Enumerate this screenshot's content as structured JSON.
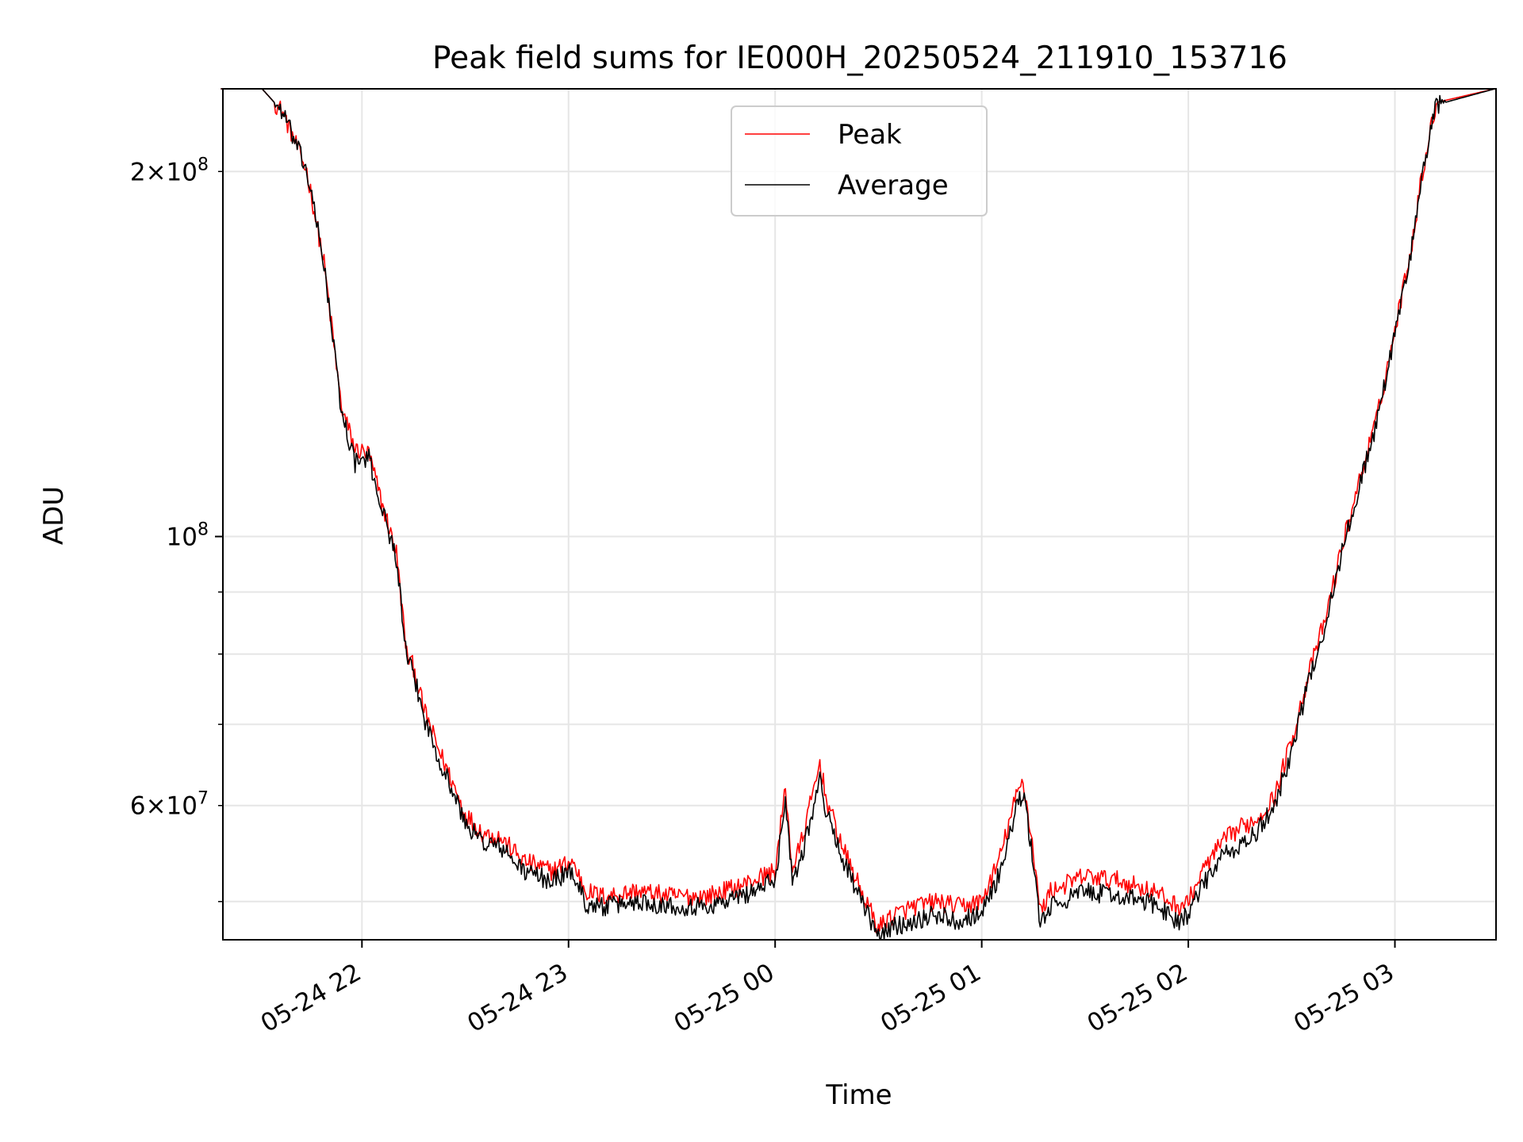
{
  "chart_data": {
    "type": "line",
    "title": "Peak field sums for IE000H_20250524_211910_153716",
    "xlabel": "Time",
    "ylabel": "ADU",
    "yscale": "log",
    "ylim": [
      46500000,
      234000000
    ],
    "xlim": [
      "2025-05-24 21:19:37",
      "2025-05-25 03:29:22"
    ],
    "x_ticks": [
      {
        "time": "2025-05-24 22:00",
        "label": "05-24 22"
      },
      {
        "time": "2025-05-24 23:00",
        "label": "05-24 23"
      },
      {
        "time": "2025-05-25 00:00",
        "label": "05-25 00"
      },
      {
        "time": "2025-05-25 01:00",
        "label": "05-25 01"
      },
      {
        "time": "2025-05-25 02:00",
        "label": "05-25 02"
      },
      {
        "time": "2025-05-25 03:00",
        "label": "05-25 03"
      }
    ],
    "y_ticks_major": [
      {
        "value": 100000000,
        "base": "10",
        "exp": "8"
      }
    ],
    "y_ticks_minor_labeled": [
      {
        "value": 60000000,
        "mantissa": "6",
        "exp": "7"
      },
      {
        "value": 200000000,
        "mantissa": "2",
        "exp": "8"
      }
    ],
    "y_ticks_minor": [
      50000000,
      60000000,
      70000000,
      80000000,
      90000000,
      200000000
    ],
    "grid": true,
    "legend": {
      "position": "top-center"
    },
    "series": [
      {
        "name": "Peak",
        "color": "#ff0000",
        "x": [
          "2025-05-24 21:19",
          "2025-05-24 21:31",
          "2025-05-24 21:37",
          "2025-05-24 21:44",
          "2025-05-24 21:49",
          "2025-05-24 21:54",
          "2025-05-24 21:58",
          "2025-05-24 22:02",
          "2025-05-24 22:06",
          "2025-05-24 22:10",
          "2025-05-24 22:13",
          "2025-05-24 22:15",
          "2025-05-24 22:18",
          "2025-05-24 22:22",
          "2025-05-24 22:26",
          "2025-05-24 22:30",
          "2025-05-24 22:35",
          "2025-05-24 22:40",
          "2025-05-24 22:47",
          "2025-05-24 22:55",
          "2025-05-24 23:01",
          "2025-05-24 23:05",
          "2025-05-24 23:10",
          "2025-05-24 23:20",
          "2025-05-24 23:30",
          "2025-05-24 23:40",
          "2025-05-24 23:50",
          "2025-05-25 00:00",
          "2025-05-25 00:03",
          "2025-05-25 00:05",
          "2025-05-25 00:08",
          "2025-05-25 00:13",
          "2025-05-25 00:15",
          "2025-05-25 00:20",
          "2025-05-25 00:25",
          "2025-05-25 00:30",
          "2025-05-25 00:33",
          "2025-05-25 00:40",
          "2025-05-25 00:47",
          "2025-05-25 00:53",
          "2025-05-25 01:00",
          "2025-05-25 01:05",
          "2025-05-25 01:10",
          "2025-05-25 01:12",
          "2025-05-25 01:15",
          "2025-05-25 01:17",
          "2025-05-25 01:20",
          "2025-05-25 01:30",
          "2025-05-25 01:40",
          "2025-05-25 01:50",
          "2025-05-25 01:57",
          "2025-05-25 02:00",
          "2025-05-25 02:05",
          "2025-05-25 02:10",
          "2025-05-25 02:15",
          "2025-05-25 02:20",
          "2025-05-25 02:25",
          "2025-05-25 02:30",
          "2025-05-25 02:35",
          "2025-05-25 02:40",
          "2025-05-25 02:45",
          "2025-05-25 02:50",
          "2025-05-25 02:55",
          "2025-05-25 03:00",
          "2025-05-25 03:05",
          "2025-05-25 03:08",
          "2025-05-25 03:12",
          "2025-05-25 03:29"
        ],
        "values": [
          234000000,
          234000000,
          224000000,
          200000000,
          168000000,
          128000000,
          118000000,
          117000000,
          106000000,
          97000000,
          80000000,
          78000000,
          72000000,
          67000000,
          63000000,
          59000000,
          57000000,
          56500000,
          54000000,
          53000000,
          54000000,
          51000000,
          50500000,
          51000000,
          50500000,
          50500000,
          51500000,
          53000000,
          62000000,
          53000000,
          56500000,
          65000000,
          60500000,
          55000000,
          51000000,
          47500000,
          48500000,
          49500000,
          50000000,
          49500000,
          50000000,
          54000000,
          61000000,
          63000000,
          55000000,
          49000000,
          51000000,
          52500000,
          52000000,
          51000000,
          49500000,
          50000000,
          53500000,
          56000000,
          57500000,
          58500000,
          61000000,
          68000000,
          77000000,
          86000000,
          99000000,
          112000000,
          126000000,
          148000000,
          175000000,
          200000000,
          228000000,
          234000000
        ]
      },
      {
        "name": "Average",
        "color": "#000000",
        "x": [
          "2025-05-24 21:19",
          "2025-05-24 21:31",
          "2025-05-24 21:37",
          "2025-05-24 21:44",
          "2025-05-24 21:49",
          "2025-05-24 21:54",
          "2025-05-24 21:58",
          "2025-05-24 22:02",
          "2025-05-24 22:06",
          "2025-05-24 22:10",
          "2025-05-24 22:13",
          "2025-05-24 22:15",
          "2025-05-24 22:18",
          "2025-05-24 22:22",
          "2025-05-24 22:26",
          "2025-05-24 22:30",
          "2025-05-24 22:35",
          "2025-05-24 22:40",
          "2025-05-24 22:47",
          "2025-05-24 22:55",
          "2025-05-24 23:01",
          "2025-05-24 23:05",
          "2025-05-24 23:10",
          "2025-05-24 23:20",
          "2025-05-24 23:30",
          "2025-05-24 23:40",
          "2025-05-24 23:50",
          "2025-05-25 00:00",
          "2025-05-25 00:03",
          "2025-05-25 00:05",
          "2025-05-25 00:08",
          "2025-05-25 00:13",
          "2025-05-25 00:15",
          "2025-05-25 00:20",
          "2025-05-25 00:25",
          "2025-05-25 00:30",
          "2025-05-25 00:33",
          "2025-05-25 00:40",
          "2025-05-25 00:47",
          "2025-05-25 00:53",
          "2025-05-25 01:00",
          "2025-05-25 01:05",
          "2025-05-25 01:10",
          "2025-05-25 01:12",
          "2025-05-25 01:15",
          "2025-05-25 01:17",
          "2025-05-25 01:20",
          "2025-05-25 01:30",
          "2025-05-25 01:40",
          "2025-05-25 01:50",
          "2025-05-25 01:57",
          "2025-05-25 02:00",
          "2025-05-25 02:05",
          "2025-05-25 02:10",
          "2025-05-25 02:15",
          "2025-05-25 02:20",
          "2025-05-25 02:25",
          "2025-05-25 02:30",
          "2025-05-25 02:35",
          "2025-05-25 02:40",
          "2025-05-25 02:45",
          "2025-05-25 02:50",
          "2025-05-25 02:55",
          "2025-05-25 03:00",
          "2025-05-25 03:05",
          "2025-05-25 03:08",
          "2025-05-25 03:12",
          "2025-05-25 03:29"
        ],
        "values": [
          234000000,
          234000000,
          224000000,
          200000000,
          168000000,
          127000000,
          115000000,
          116000000,
          105000000,
          96000000,
          79000000,
          77000000,
          71000000,
          66000000,
          62000000,
          58000000,
          56000000,
          55500000,
          53000000,
          52000000,
          53000000,
          49800000,
          49500000,
          50000000,
          49600000,
          49500000,
          50500000,
          52000000,
          61000000,
          52000000,
          55000000,
          63000000,
          59000000,
          54000000,
          50000000,
          46700000,
          47500000,
          48200000,
          48800000,
          48200000,
          49000000,
          52500000,
          59500000,
          61500000,
          54000000,
          47800000,
          49500000,
          51000000,
          50500000,
          49800000,
          48200000,
          48800000,
          52000000,
          54500000,
          55500000,
          57000000,
          60000000,
          66500000,
          76000000,
          85000000,
          98000000,
          111000000,
          125000000,
          147000000,
          174000000,
          199000000,
          227000000,
          234000000
        ]
      }
    ]
  }
}
